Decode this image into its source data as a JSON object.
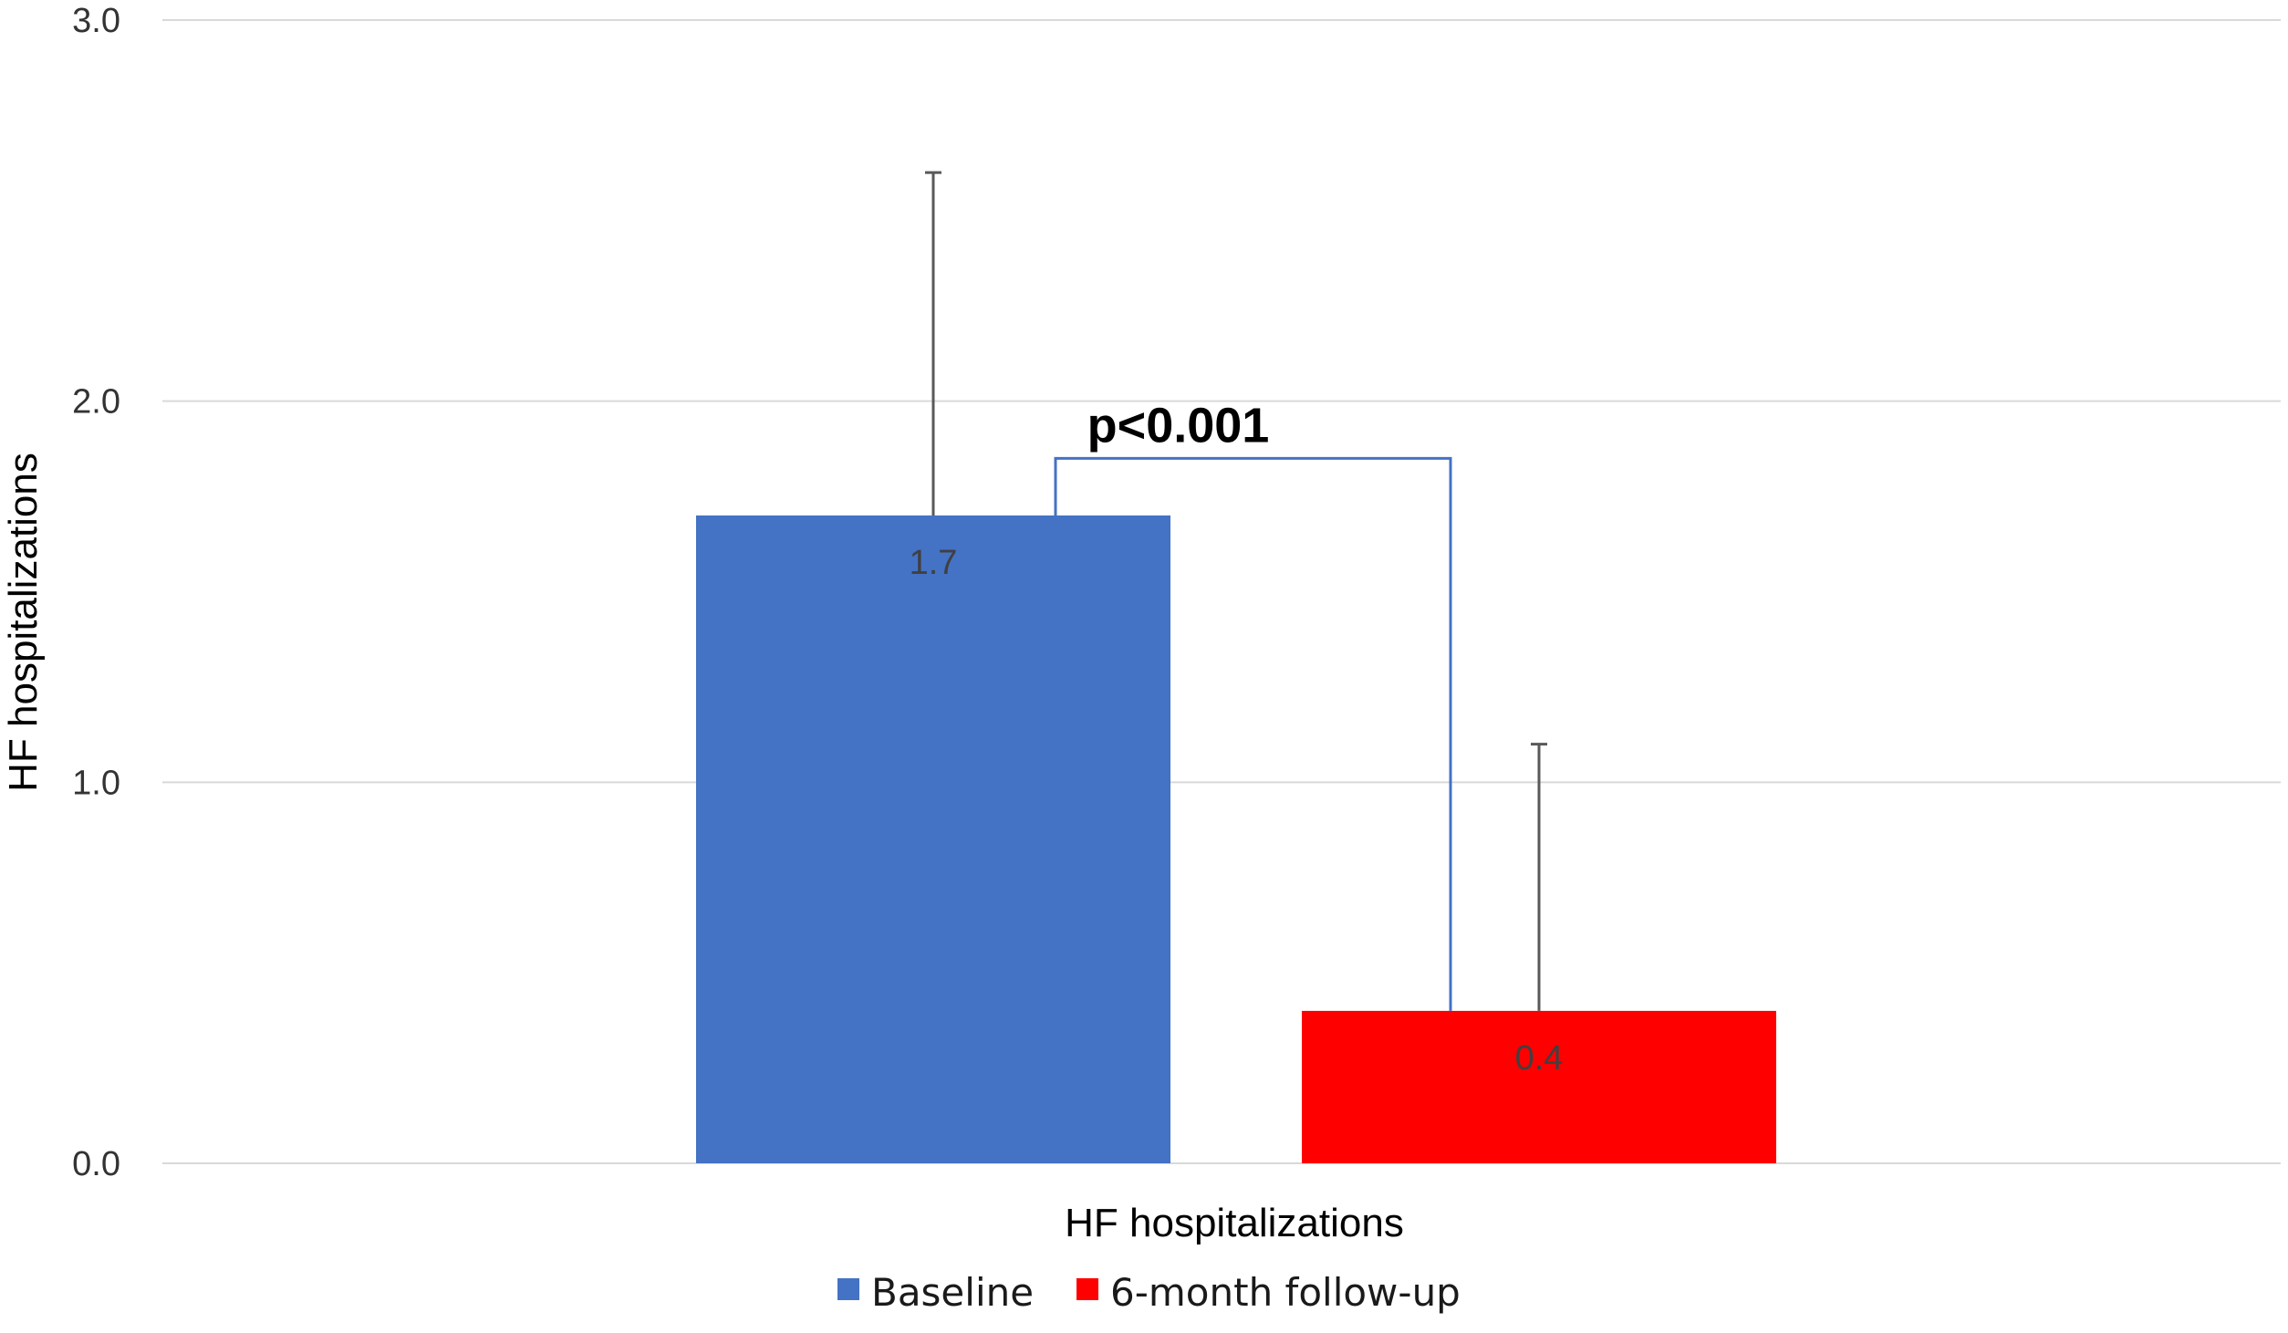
{
  "chart_data": {
    "type": "bar",
    "ylabel": "HF hospitalizations",
    "xlabel": "",
    "ylim": [
      0,
      3.0
    ],
    "yticks": [
      "0.0",
      "1.0",
      "2.0",
      "3.0"
    ],
    "grid": true,
    "legend_position": "bottom",
    "categories": [
      "HF hospitalizations"
    ],
    "series": [
      {
        "name": "Baseline",
        "values": [
          1.7
        ],
        "error_upper": [
          0.9
        ],
        "label": "1.7",
        "color": "#4472C4"
      },
      {
        "name": "6-month follow-up",
        "values": [
          0.4
        ],
        "error_upper": [
          0.7
        ],
        "label": "0.4",
        "color": "#FF0000"
      }
    ],
    "annotation": "p<0.001",
    "annotation_value": 1.85
  }
}
